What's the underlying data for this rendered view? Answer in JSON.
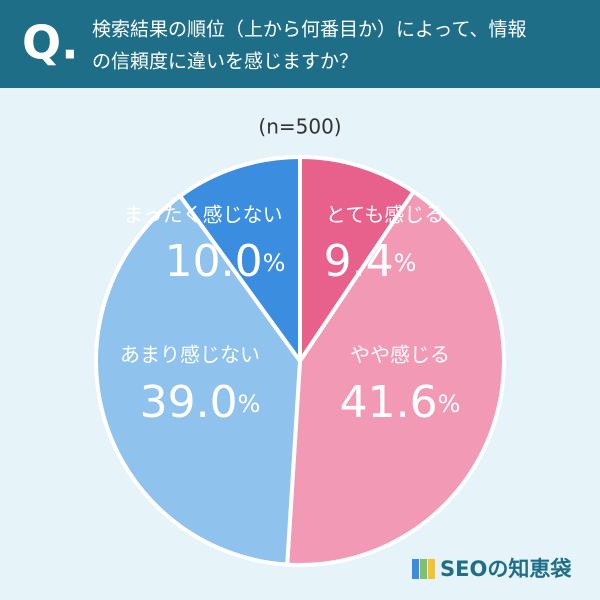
{
  "header": {
    "mark": "Q.",
    "question": [
      "検索結果の順位（上から何番目か）によって、情報",
      "の信頼度に違いを感じますか？"
    ]
  },
  "chart_data": {
    "type": "pie",
    "subtitle": "(n=500)",
    "categories": [
      "とても感じる",
      "やや感じる",
      "あまり感じない",
      "まったく感じない"
    ],
    "values": [
      9.4,
      41.6,
      39.0,
      10.0
    ],
    "value_labels": [
      "9.4",
      "41.6",
      "39.0",
      "10.0"
    ],
    "unit": "%",
    "colors": [
      "#e8618c",
      "#f29ab5",
      "#8fc3ee",
      "#3a8ddf"
    ]
  },
  "footer": {
    "logo": "SEOの知恵袋"
  }
}
